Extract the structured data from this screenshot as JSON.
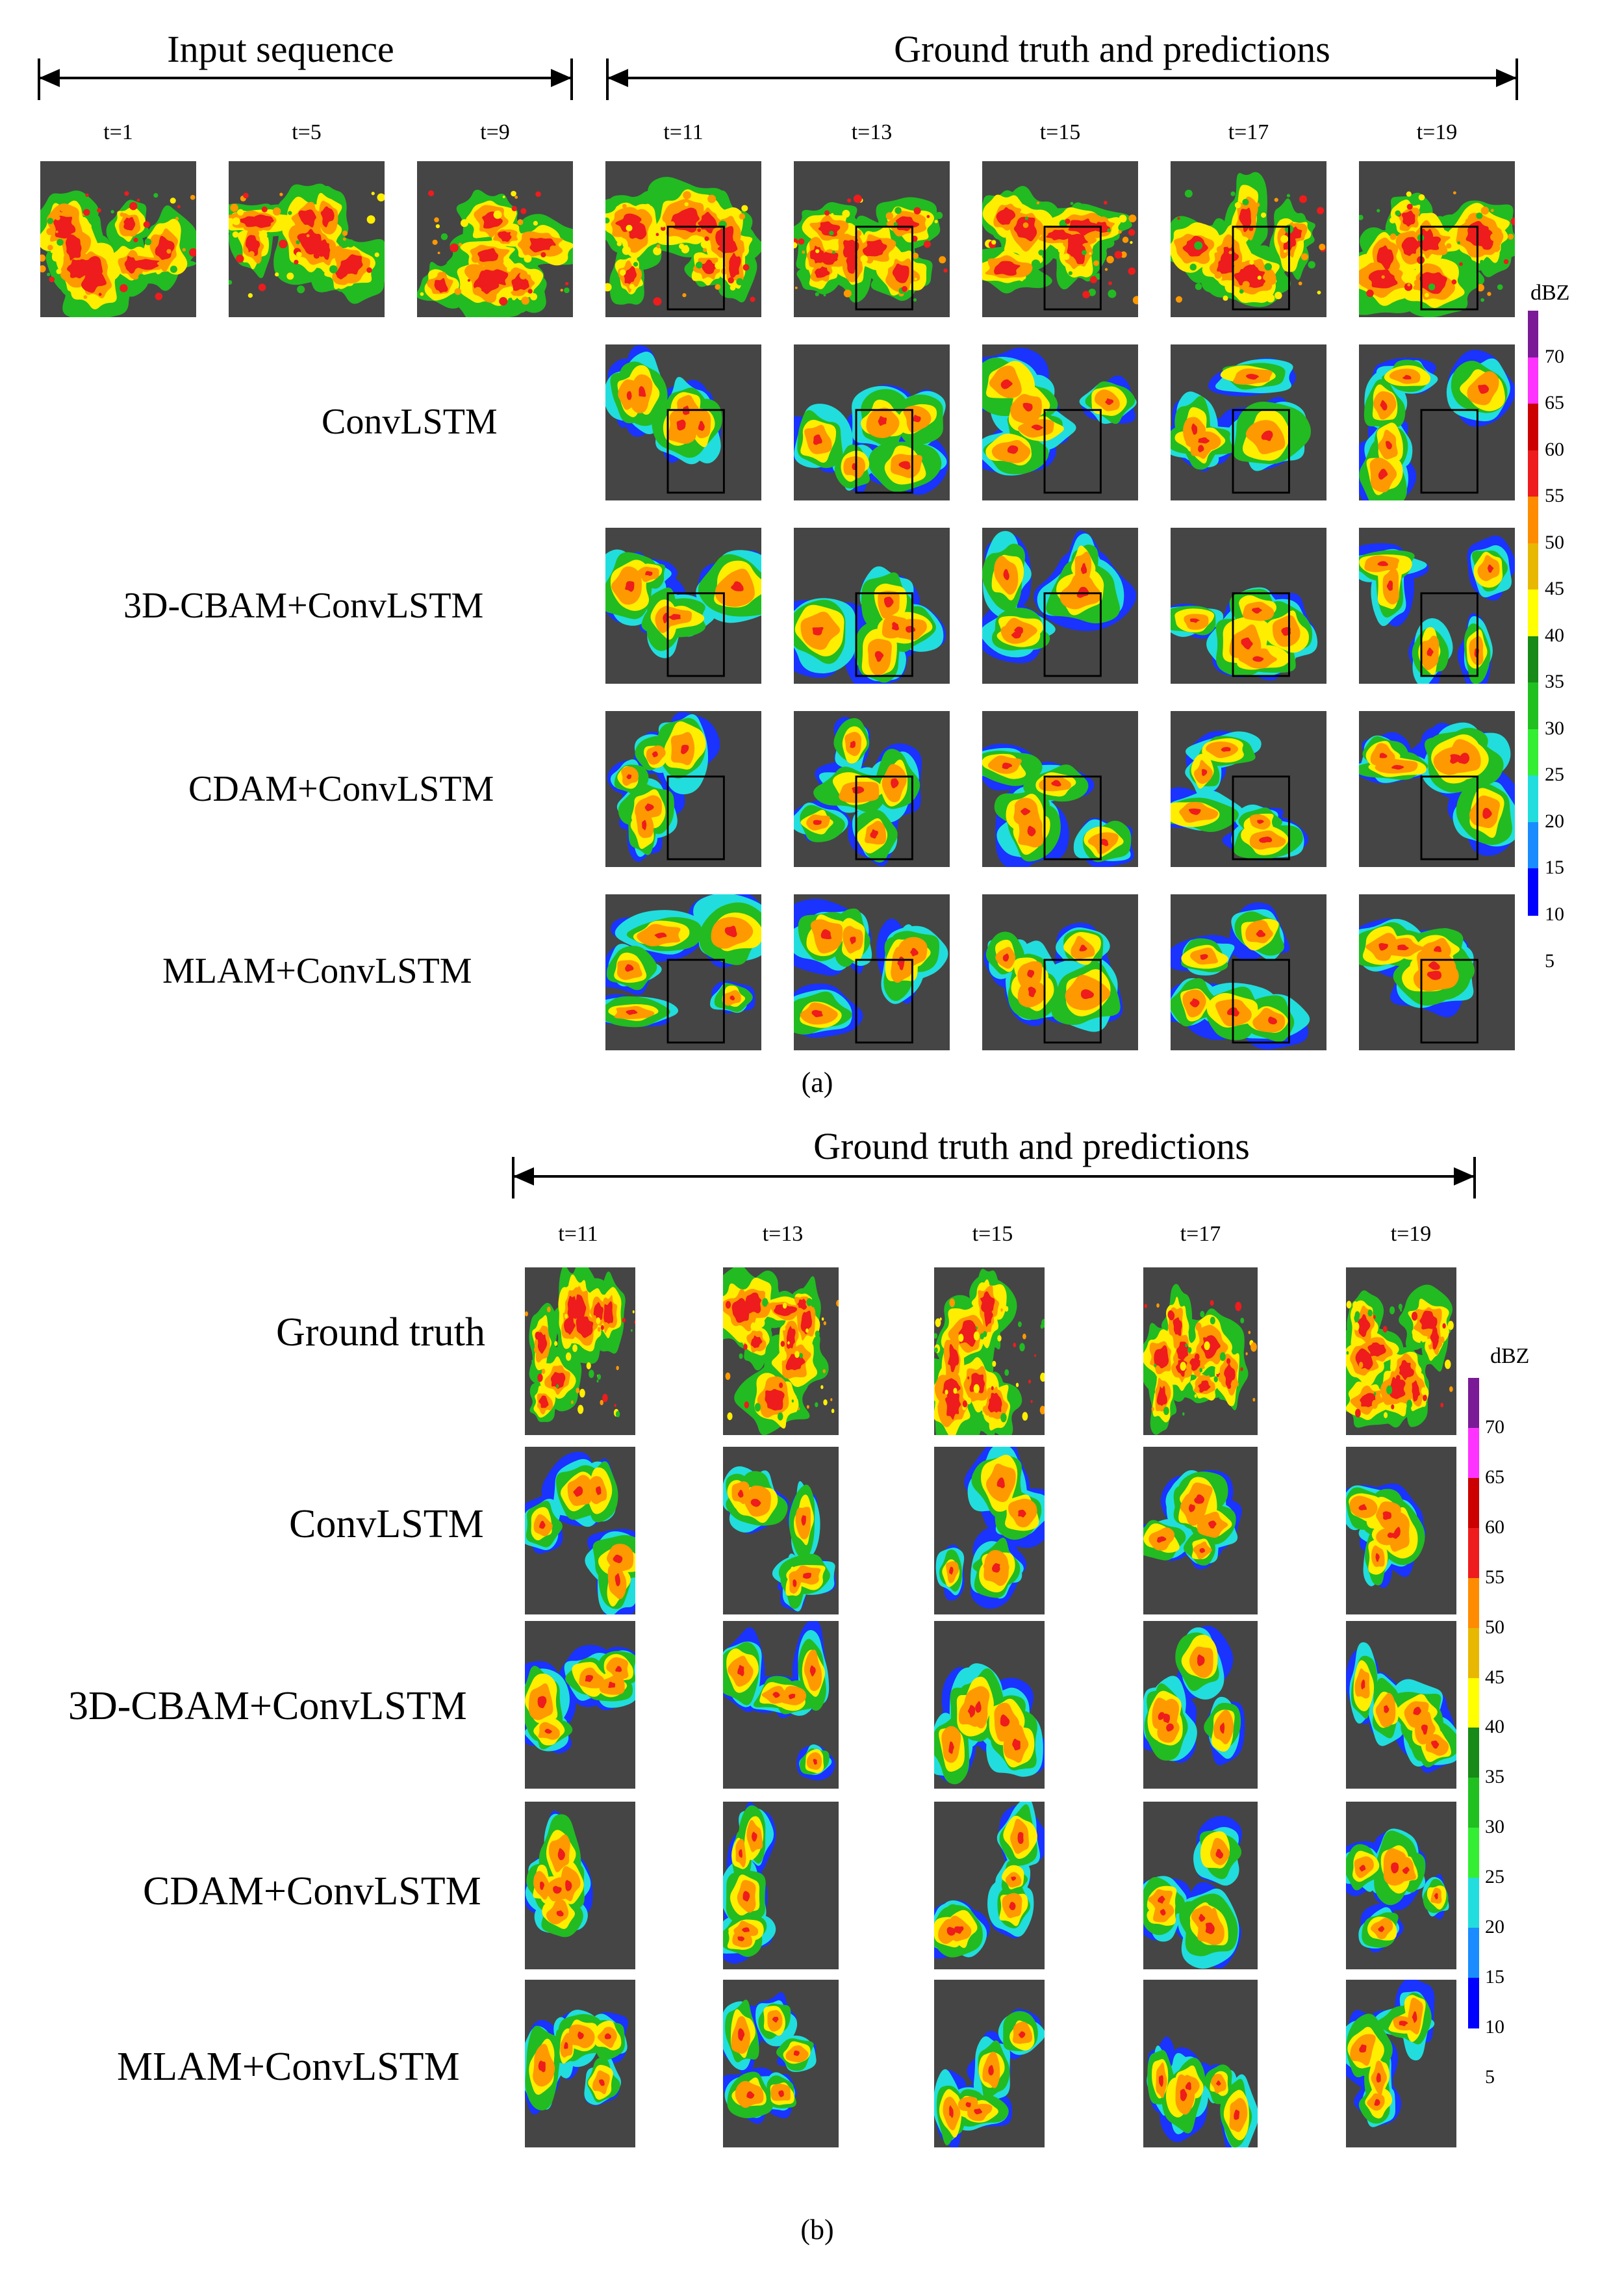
{
  "panel_a": {
    "input_header": "Input sequence",
    "prediction_header": "Ground truth and predictions",
    "input_times": [
      "t=1",
      "t=5",
      "t=9"
    ],
    "output_times": [
      "t=11",
      "t=13",
      "t=15",
      "t=17",
      "t=19"
    ],
    "row_labels": [
      "ConvLSTM",
      "3D-CBAM+ConvLSTM",
      "CDAM+ConvLSTM",
      "MLAM+ConvLSTM"
    ],
    "caption": "(a)"
  },
  "panel_b": {
    "prediction_header": "Ground truth and predictions",
    "output_times": [
      "t=11",
      "t=13",
      "t=15",
      "t=17",
      "t=19"
    ],
    "row_labels": [
      "Ground truth",
      "ConvLSTM",
      "3D-CBAM+ConvLSTM",
      "CDAM+ConvLSTM",
      "MLAM+ConvLSTM"
    ],
    "caption": "(b)"
  },
  "colorbar": {
    "unit": "dBZ",
    "ticks": [
      "70",
      "65",
      "60",
      "55",
      "50",
      "45",
      "40",
      "35",
      "30",
      "25",
      "20",
      "15",
      "10",
      "5"
    ],
    "colors": [
      "#7a1a96",
      "#ff33ff",
      "#cc0000",
      "#ee1c1c",
      "#ff8c00",
      "#e8b800",
      "#ffff00",
      "#178a17",
      "#20c020",
      "#33ee33",
      "#22dddd",
      "#1a8cff",
      "#0000ff"
    ]
  },
  "colors": {
    "background": "#454545",
    "low": "#1a33ff",
    "cyan": "#22dddd",
    "green": "#22bb22",
    "yellow": "#ffee00",
    "orange": "#ff9900",
    "red": "#ee1c1c"
  }
}
